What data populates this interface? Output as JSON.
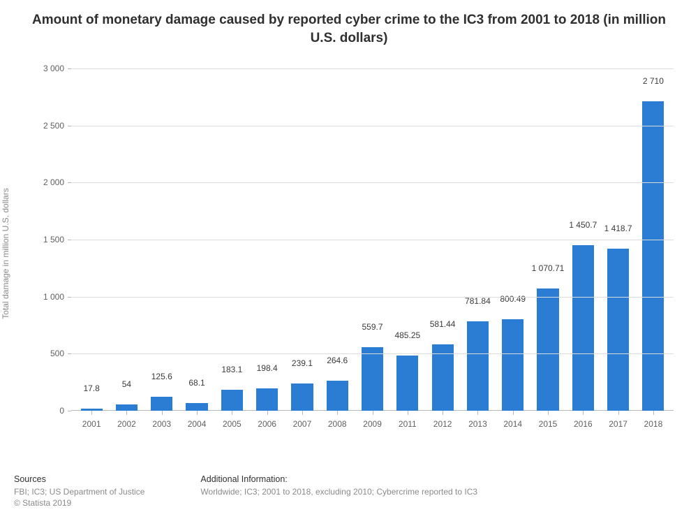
{
  "chart": {
    "type": "bar",
    "title": "Amount of monetary damage caused by reported cyber crime to the IC3 from 2001 to 2018 (in million U.S. dollars)",
    "title_fontsize": 19,
    "ylabel": "Total damage in million U.S. dollars",
    "label_fontsize": 12,
    "categories": [
      "2001",
      "2002",
      "2003",
      "2004",
      "2005",
      "2006",
      "2007",
      "2008",
      "2009",
      "2011",
      "2012",
      "2013",
      "2014",
      "2015",
      "2016",
      "2017",
      "2018"
    ],
    "values": [
      17.8,
      54,
      125.6,
      68.1,
      183.1,
      198.4,
      239.1,
      264.6,
      559.7,
      485.25,
      581.44,
      781.84,
      800.49,
      1070.71,
      1450.7,
      1418.7,
      2710
    ],
    "value_labels": [
      "17.8",
      "54",
      "125.6",
      "68.1",
      "183.1",
      "198.4",
      "239.1",
      "264.6",
      "559.7",
      "485.25",
      "581.44",
      "781.84",
      "800.49",
      "1 070.71",
      "1 450.7",
      "1 418.7",
      "2 710"
    ],
    "bar_color": "#2b7cd3",
    "bar_width": 0.62,
    "background_color": "#ffffff",
    "grid_color": "#dcdcdc",
    "axis_color": "#b8b8b8",
    "text_color": "#5f5f5f",
    "ylim": [
      0,
      3000
    ],
    "ytick_step": 500,
    "ytick_labels": [
      "0",
      "500",
      "1 000",
      "1 500",
      "2 000",
      "2 500",
      "3 000"
    ],
    "tick_fontsize": 12,
    "value_label_fontsize": 12
  },
  "footer": {
    "sources_heading": "Sources",
    "sources_line1": "FBI; IC3; US Department of Justice",
    "sources_line2": "© Statista 2019",
    "info_heading": "Additional Information:",
    "info_line": "Worldwide; IC3; 2001 to 2018, excluding 2010; Cybercrime reported to IC3"
  }
}
